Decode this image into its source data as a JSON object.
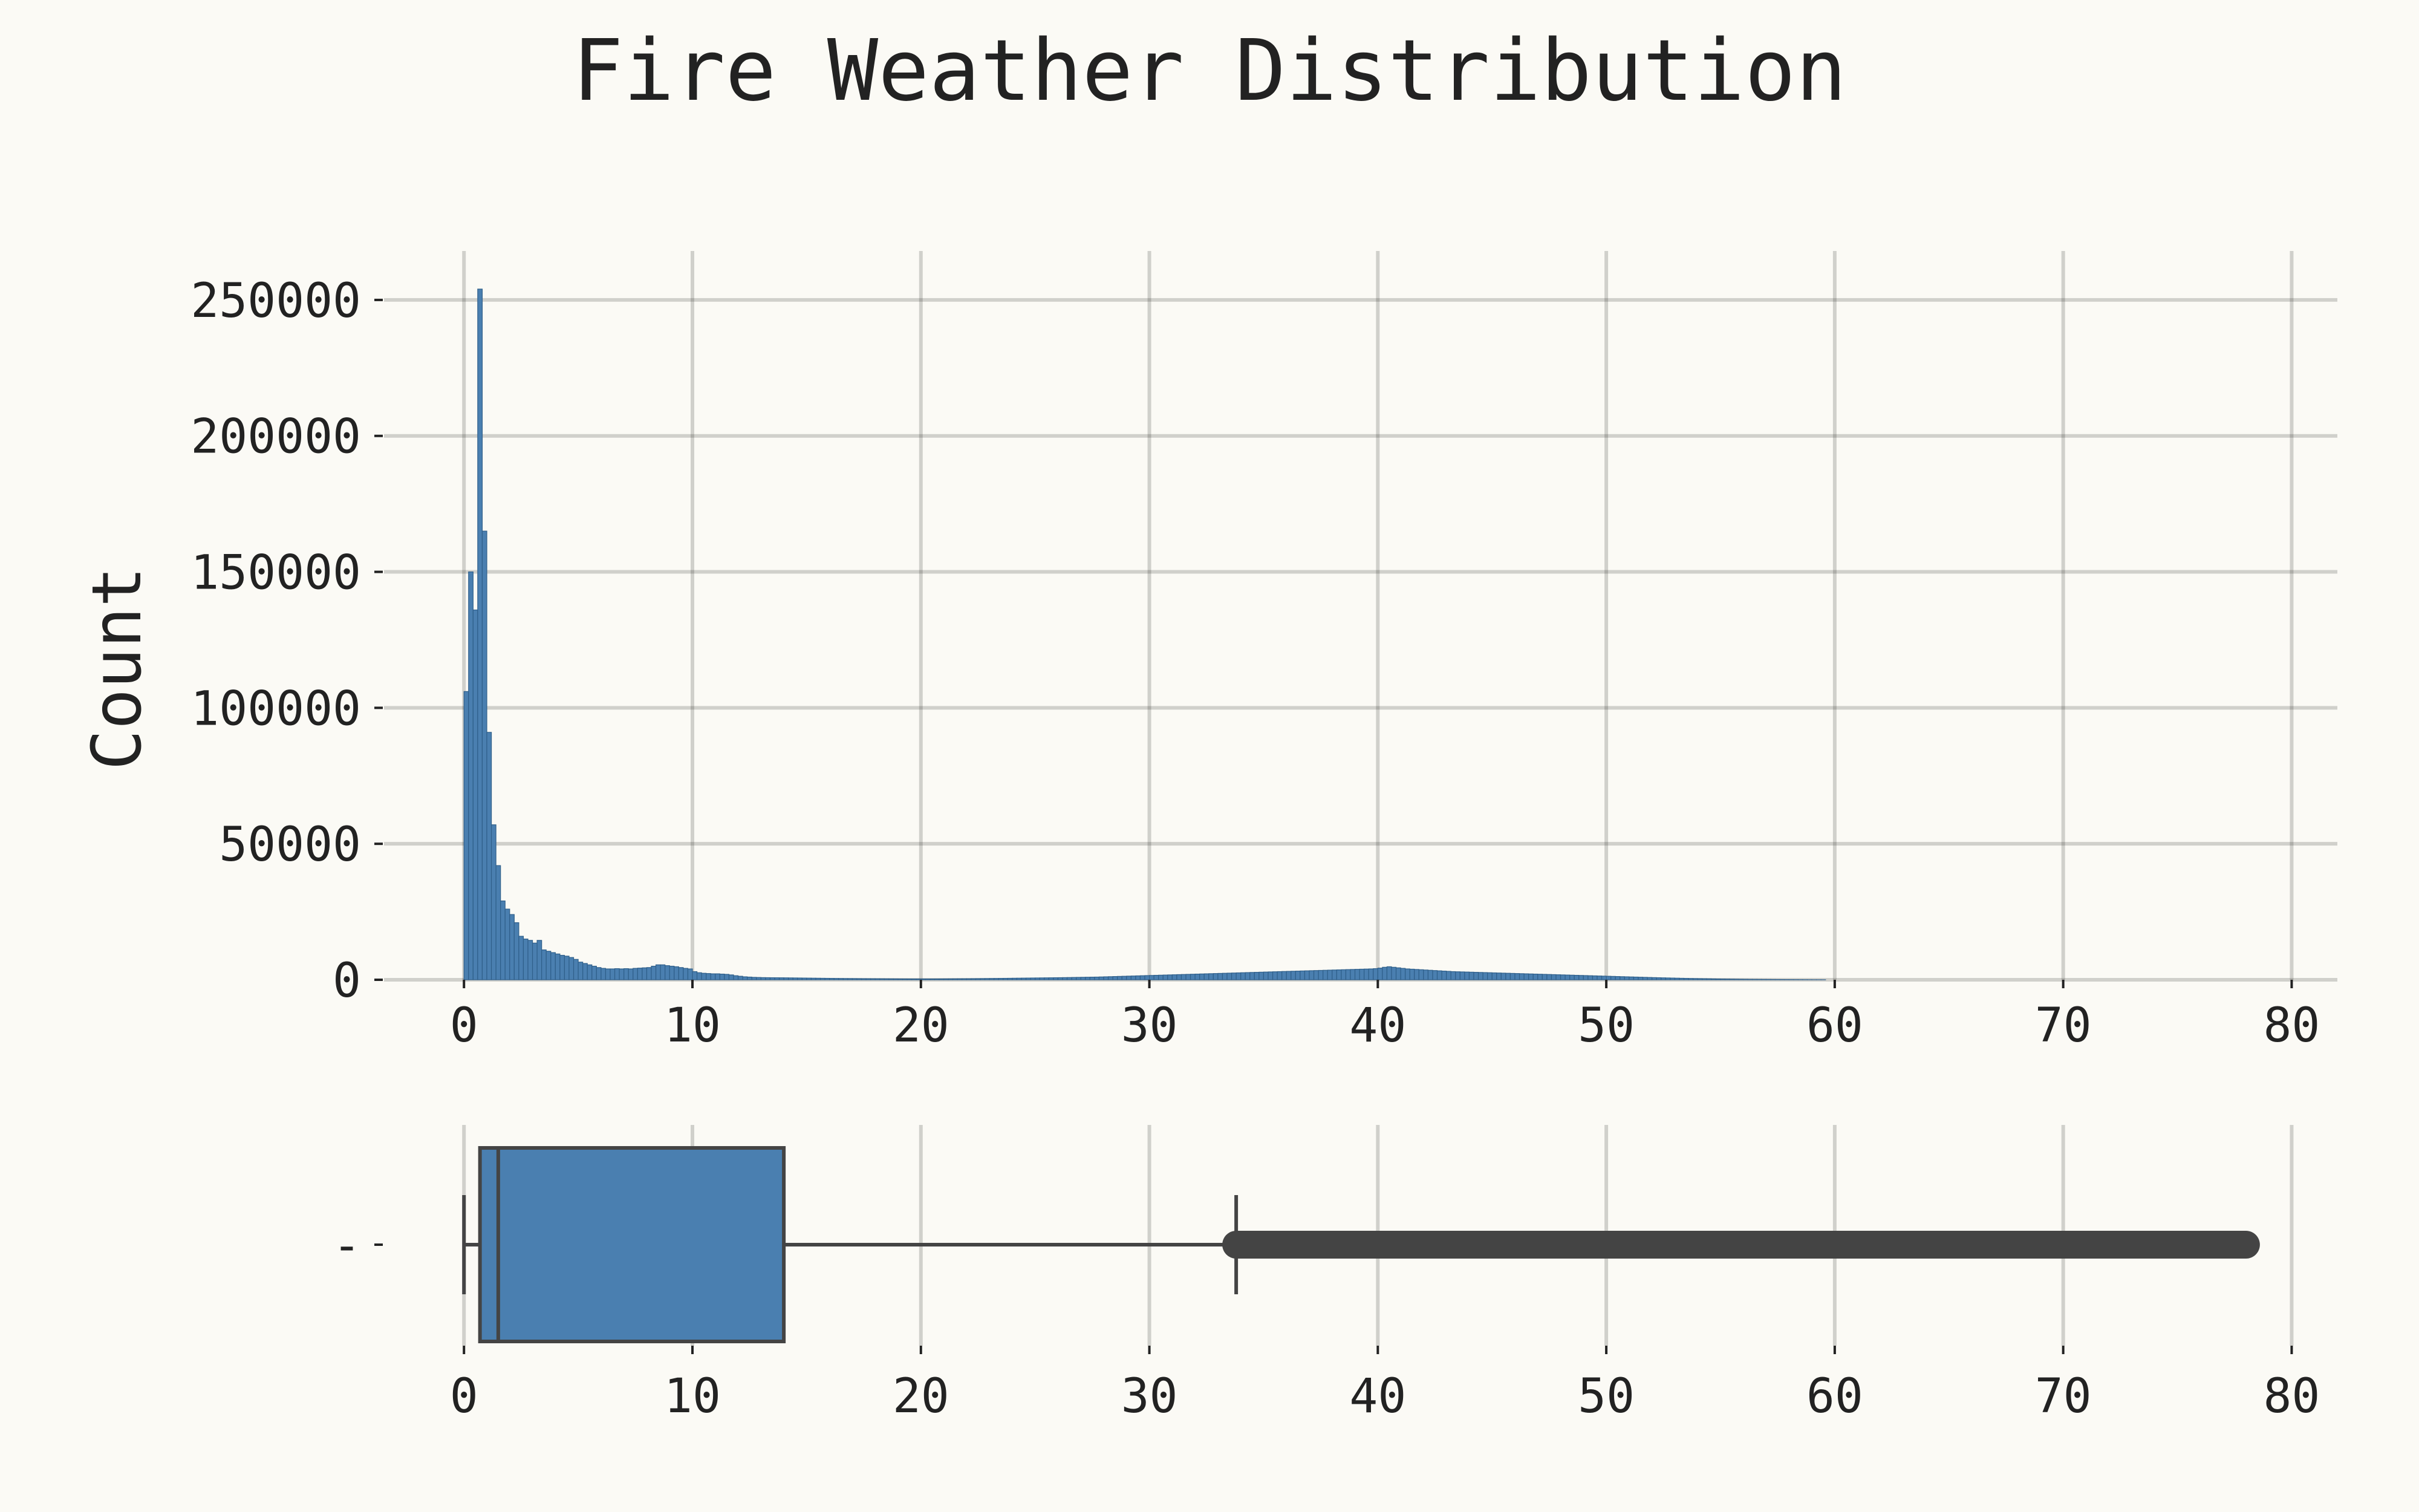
{
  "chart_data": [
    {
      "type": "histogram",
      "title": "Fire Weather Distribution",
      "xlabel": "",
      "ylabel": "Count",
      "xlim": [
        -3.5,
        82
      ],
      "ylim": [
        0,
        268000
      ],
      "grid": true,
      "bar_color": "#4a7fb0",
      "edge_color": "#2f5f8a",
      "x_ticks": [
        "0",
        "10",
        "20",
        "30",
        "40",
        "50",
        "60",
        "70",
        "80"
      ],
      "y_ticks": [
        "0",
        "50000",
        "100000",
        "150000",
        "200000",
        "250000"
      ],
      "bin_width": 0.2,
      "bin_start": 0,
      "counts": [
        106000,
        150000,
        136000,
        254000,
        165000,
        91000,
        57000,
        42000,
        29000,
        26000,
        24000,
        21000,
        16000,
        15000,
        14500,
        13500,
        14500,
        11000,
        10500,
        10000,
        9500,
        9000,
        8700,
        8200,
        7500,
        6500,
        6000,
        5500,
        5000,
        4500,
        4200,
        4000,
        4000,
        4100,
        4000,
        4100,
        4000,
        4200,
        4300,
        4400,
        4500,
        5000,
        5500,
        5500,
        5200,
        5000,
        4800,
        4500,
        4200,
        4000,
        3000,
        2600,
        2400,
        2300,
        2200,
        2200,
        2100,
        2000,
        1800,
        1500,
        1300,
        1100,
        1000,
        900,
        850,
        800,
        780,
        760,
        750,
        740,
        720,
        700,
        680,
        660,
        640,
        620,
        600,
        580,
        560,
        540,
        520,
        500,
        480,
        460,
        450,
        440,
        420,
        400,
        390,
        380,
        370,
        360,
        350,
        340,
        330,
        320,
        315,
        310,
        305,
        300,
        300,
        305,
        310,
        315,
        320,
        330,
        340,
        350,
        360,
        370,
        380,
        400,
        420,
        440,
        460,
        480,
        500,
        520,
        540,
        560,
        580,
        600,
        620,
        640,
        660,
        680,
        700,
        720,
        740,
        760,
        780,
        800,
        830,
        860,
        890,
        920,
        950,
        980,
        1000,
        1050,
        1100,
        1150,
        1200,
        1250,
        1300,
        1350,
        1400,
        1450,
        1500,
        1550,
        1600,
        1650,
        1700,
        1750,
        1800,
        1850,
        1900,
        1950,
        2000,
        2050,
        2100,
        2150,
        2200,
        2250,
        2300,
        2350,
        2400,
        2450,
        2500,
        2550,
        2600,
        2650,
        2700,
        2750,
        2800,
        2850,
        2900,
        2950,
        3000,
        3050,
        3100,
        3150,
        3200,
        3250,
        3300,
        3350,
        3400,
        3450,
        3500,
        3550,
        3600,
        3650,
        3700,
        3750,
        3800,
        3850,
        3900,
        3950,
        4000,
        4100,
        4300,
        4600,
        4800,
        4600,
        4400,
        4200,
        4000,
        3900,
        3800,
        3700,
        3600,
        3500,
        3400,
        3300,
        3200,
        3100,
        3000,
        2950,
        2900,
        2850,
        2800,
        2750,
        2700,
        2650,
        2600,
        2550,
        2500,
        2450,
        2400,
        2350,
        2300,
        2250,
        2200,
        2150,
        2100,
        2050,
        2000,
        1950,
        1900,
        1850,
        1800,
        1750,
        1700,
        1650,
        1600,
        1550,
        1500,
        1450,
        1400,
        1350,
        1300,
        1250,
        1200,
        1150,
        1100,
        1050,
        1000,
        950,
        900,
        850,
        800,
        760,
        720,
        680,
        640,
        600,
        560,
        520,
        480,
        450,
        420,
        390,
        360,
        330,
        300,
        280,
        260,
        240,
        220,
        200,
        180,
        160,
        150,
        140,
        130,
        120,
        110,
        100,
        90,
        80,
        70,
        60,
        50,
        40,
        30,
        20,
        15,
        10
      ]
    },
    {
      "type": "boxplot",
      "xlim": [
        -3.5,
        82
      ],
      "grid": true,
      "box_color": "#4a7fb0",
      "line_color": "#444444",
      "x_ticks": [
        "0",
        "10",
        "20",
        "30",
        "40",
        "50",
        "60",
        "70",
        "80"
      ],
      "y_tick": "-",
      "whisker_low": 0,
      "q1": 0.7,
      "median": 1.5,
      "q3": 14,
      "whisker_high": 33.8,
      "outlier_range": [
        33.8,
        78
      ]
    }
  ]
}
